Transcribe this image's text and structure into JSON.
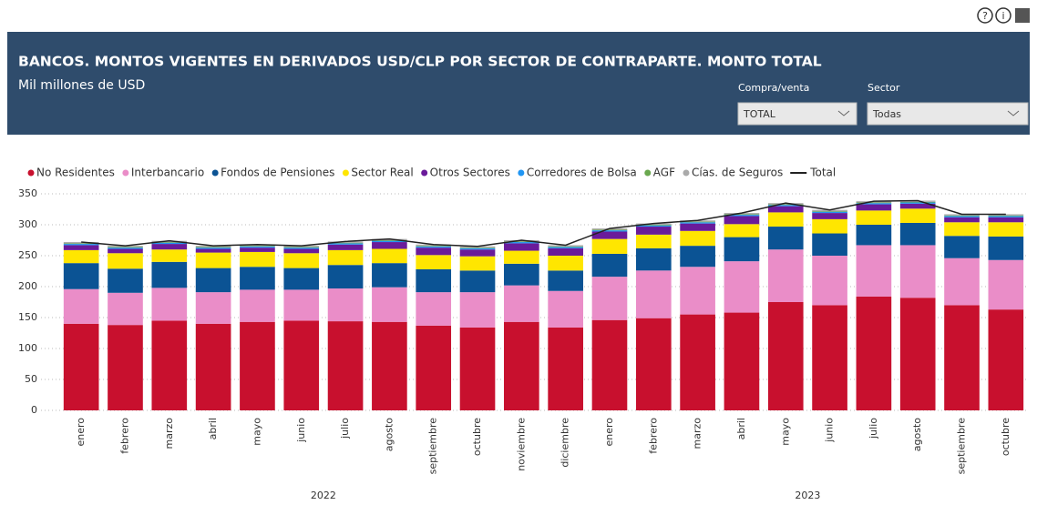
{
  "header": {
    "title": "BANCOS. MONTOS VIGENTES EN DERIVADOS USD/CLP POR SECTOR DE CONTRAPARTE. MONTO TOTAL",
    "subtitle": "Mil millones de USD",
    "filters": [
      {
        "label": "Compra/venta",
        "value": "TOTAL"
      },
      {
        "label": "Sector",
        "value": "Todas"
      }
    ]
  },
  "chart_data": {
    "type": "stacked_bar",
    "category_groups": [
      {
        "label": "2022",
        "categories": [
          "enero",
          "febrero",
          "marzo",
          "abril",
          "mayo",
          "junio",
          "julio",
          "agosto",
          "septiembre",
          "octubre",
          "noviembre",
          "diciembre"
        ]
      },
      {
        "label": "2023",
        "categories": [
          "enero",
          "febrero",
          "marzo",
          "abril",
          "mayo",
          "junio",
          "julio",
          "agosto",
          "septiembre",
          "octubre"
        ]
      }
    ],
    "ylim": [
      0,
      350
    ],
    "yticks": [
      0,
      50,
      100,
      150,
      200,
      250,
      300,
      350
    ],
    "series": [
      {
        "name": "No Residentes",
        "color": "#c8102e",
        "values": [
          140,
          138,
          145,
          140,
          143,
          145,
          144,
          143,
          137,
          134,
          143,
          134,
          146,
          149,
          155,
          158,
          175,
          170,
          184,
          182,
          170,
          163
        ]
      },
      {
        "name": "Interbancario",
        "color": "#ea8dc8",
        "values": [
          56,
          52,
          53,
          51,
          52,
          50,
          53,
          56,
          54,
          57,
          59,
          59,
          70,
          77,
          77,
          83,
          85,
          80,
          83,
          85,
          76,
          80
        ]
      },
      {
        "name": "Fondos de Pensiones",
        "color": "#0b5394",
        "values": [
          42,
          39,
          42,
          39,
          37,
          35,
          38,
          39,
          37,
          35,
          35,
          33,
          37,
          36,
          34,
          39,
          37,
          36,
          33,
          36,
          36,
          38
        ]
      },
      {
        "name": "Sector Real",
        "color": "#ffe600",
        "values": [
          21,
          25,
          20,
          25,
          24,
          24,
          24,
          23,
          23,
          23,
          21,
          24,
          24,
          22,
          24,
          21,
          23,
          23,
          23,
          23,
          22,
          23
        ]
      },
      {
        "name": "Otros Sectores",
        "color": "#6a1b9a",
        "values": [
          8,
          7,
          9,
          6,
          7,
          7,
          9,
          11,
          12,
          11,
          12,
          12,
          12,
          13,
          12,
          13,
          10,
          10,
          10,
          8,
          8,
          8
        ]
      },
      {
        "name": "Corredores de Bolsa",
        "color": "#2196f3",
        "values": [
          2,
          2,
          2,
          2,
          2,
          2,
          2,
          2,
          2,
          2,
          2,
          2,
          2,
          2,
          2,
          2,
          2,
          2,
          2,
          2,
          2,
          2
        ]
      },
      {
        "name": "AGF",
        "color": "#6aa84f",
        "values": [
          1,
          1,
          1,
          1,
          1,
          1,
          1,
          1,
          1,
          1,
          1,
          1,
          1,
          1,
          1,
          1,
          1,
          1,
          1,
          1,
          1,
          1
        ]
      },
      {
        "name": "Cías. de Seguros",
        "color": "#aaaaaa",
        "values": [
          2,
          2,
          2,
          2,
          2,
          2,
          2,
          2,
          2,
          2,
          2,
          2,
          2,
          2,
          2,
          2,
          2,
          2,
          2,
          2,
          2,
          2
        ]
      },
      {
        "name": "Total",
        "color": "#222222",
        "line": true,
        "values": [
          272,
          266,
          274,
          266,
          268,
          266,
          273,
          277,
          268,
          265,
          275,
          267,
          294,
          302,
          307,
          319,
          335,
          324,
          338,
          339,
          317,
          317
        ]
      }
    ]
  }
}
